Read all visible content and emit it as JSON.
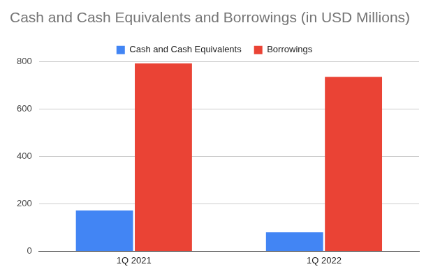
{
  "chart_data": {
    "type": "bar",
    "title": "Cash and Cash Equivalents and Borrowings (in USD Millions)",
    "categories": [
      "1Q 2021",
      "1Q 2022"
    ],
    "series": [
      {
        "name": "Cash and Cash Equivalents",
        "color": "#4285f4",
        "values": [
          172,
          80
        ]
      },
      {
        "name": "Borrowings",
        "color": "#ea4335",
        "values": [
          792,
          735
        ]
      }
    ],
    "ylim": [
      0,
      800
    ],
    "yticks": [
      0,
      200,
      400,
      600,
      800
    ],
    "grid": true,
    "legend": "top"
  }
}
